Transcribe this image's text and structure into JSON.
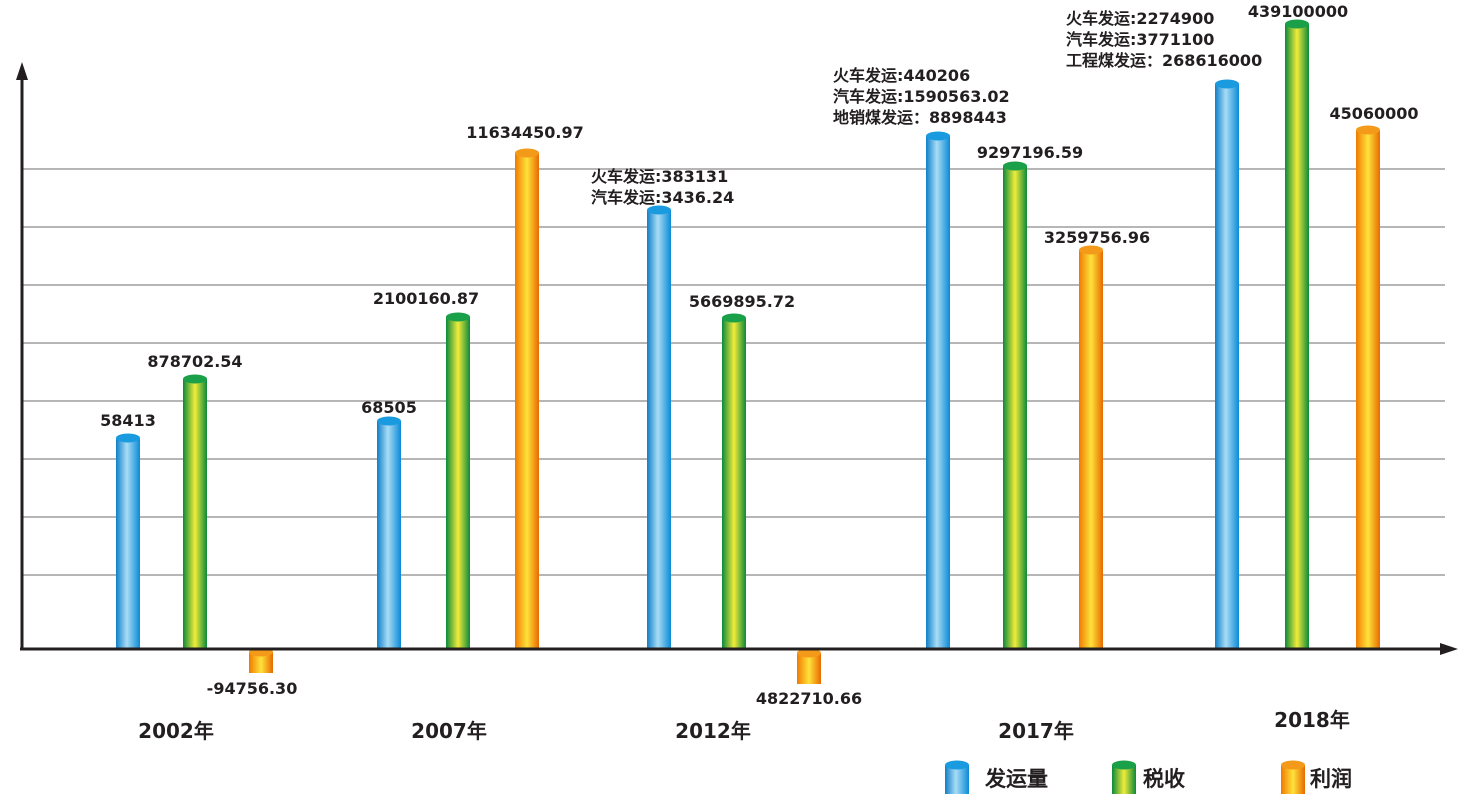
{
  "chart_data": {
    "type": "bar",
    "title": "",
    "categories": [
      "2002年",
      "2007年",
      "2012年",
      "2017年",
      "2018年"
    ],
    "grid": true,
    "legend_placement": "bottom-right",
    "series": [
      {
        "name": "发运量",
        "color": "#1a9be0",
        "values": [
          58413,
          68505,
          null,
          null,
          null
        ],
        "labels": [
          [
            "58413"
          ],
          [
            "68505"
          ],
          [
            "火车发运:383131",
            "汽车发运:3436.24"
          ],
          [
            "火车发运:440206",
            "汽车发运:1590563.02",
            "地销煤发运：8898443"
          ],
          [
            "火车发运:2274900",
            "汽车发运:3771100",
            "工程煤发运：268616000"
          ]
        ]
      },
      {
        "name": "税收",
        "color": "#1aa048",
        "values": [
          878702.54,
          2100160.87,
          5669895.72,
          9297196.59,
          439100000
        ],
        "labels": [
          [
            "878702.54"
          ],
          [
            "2100160.87"
          ],
          [
            "5669895.72"
          ],
          [
            "9297196.59"
          ],
          [
            "439100000"
          ]
        ]
      },
      {
        "name": "利润",
        "color": "#f08a00",
        "values": [
          -94756.3,
          11634450.97,
          4822710.66,
          3259756.96,
          45060000
        ],
        "labels": [
          [
            "-94756.30"
          ],
          [
            "11634450.97"
          ],
          [
            "4822710.66"
          ],
          [
            "3259756.96"
          ],
          [
            "45060000"
          ]
        ]
      }
    ]
  }
}
